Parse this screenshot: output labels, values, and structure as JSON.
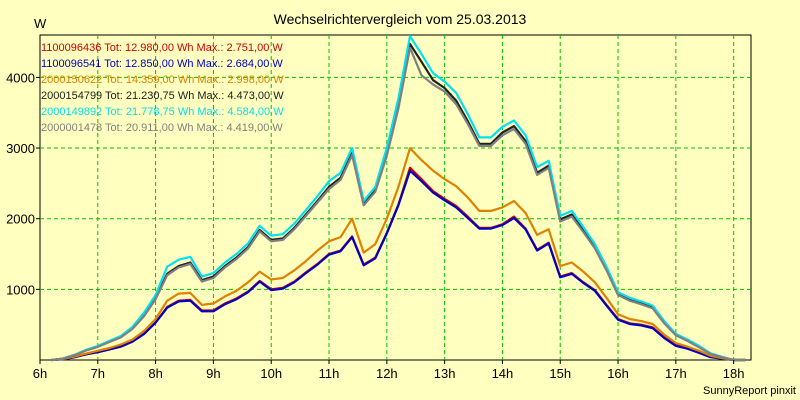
{
  "chart_data": {
    "type": "line",
    "title": "Wechselrichtervergleich vom 25.03.2013",
    "ylabel": "W",
    "footer": "SunnyReport pinxit",
    "x_ticks": [
      "6h",
      "7h",
      "8h",
      "9h",
      "10h",
      "11h",
      "12h",
      "13h",
      "14h",
      "15h",
      "16h",
      "17h",
      "18h"
    ],
    "y_ticks": [
      "1000",
      "2000",
      "3000",
      "4000"
    ],
    "xlim": [
      6,
      18.3
    ],
    "ylim": [
      0,
      4600
    ],
    "grid": true,
    "legend_position": "top-left",
    "x": [
      6.2,
      6.4,
      6.6,
      6.8,
      7.0,
      7.2,
      7.4,
      7.6,
      7.8,
      8.0,
      8.2,
      8.4,
      8.6,
      8.8,
      9.0,
      9.2,
      9.4,
      9.6,
      9.8,
      10.0,
      10.2,
      10.4,
      10.6,
      10.8,
      11.0,
      11.2,
      11.4,
      11.6,
      11.8,
      12.0,
      12.2,
      12.4,
      12.6,
      12.8,
      13.0,
      13.2,
      13.4,
      13.6,
      13.8,
      14.0,
      14.2,
      14.4,
      14.6,
      14.8,
      15.0,
      15.2,
      15.4,
      15.6,
      15.8,
      16.0,
      16.2,
      16.4,
      16.6,
      16.8,
      17.0,
      17.2,
      17.4,
      17.6,
      17.8,
      18.0,
      18.2
    ],
    "series": [
      {
        "name": "1100096436",
        "label": "1100096436 Tot: 12.980,00 Wh Max.: 2.751,00 W",
        "color": "#d00000",
        "values": [
          0,
          10,
          40,
          80,
          110,
          150,
          190,
          260,
          370,
          530,
          750,
          840,
          850,
          700,
          700,
          800,
          870,
          970,
          1120,
          1000,
          1020,
          1110,
          1240,
          1360,
          1500,
          1550,
          1750,
          1350,
          1450,
          1800,
          2200,
          2720,
          2560,
          2390,
          2280,
          2180,
          2030,
          1870,
          1870,
          1920,
          2030,
          1860,
          1560,
          1660,
          1180,
          1230,
          1100,
          990,
          780,
          580,
          520,
          500,
          460,
          320,
          210,
          170,
          110,
          50,
          20,
          0,
          0
        ]
      },
      {
        "name": "1100096541",
        "label": "1100096541 Tot: 12.850,00 Wh Max.: 2.684,00 W",
        "color": "#0000c0",
        "values": [
          0,
          10,
          40,
          80,
          110,
          150,
          190,
          260,
          370,
          530,
          740,
          830,
          840,
          690,
          690,
          790,
          860,
          960,
          1110,
          990,
          1010,
          1100,
          1230,
          1350,
          1490,
          1540,
          1740,
          1340,
          1440,
          1790,
          2190,
          2680,
          2530,
          2370,
          2260,
          2160,
          2010,
          1860,
          1860,
          1910,
          2010,
          1850,
          1550,
          1650,
          1170,
          1220,
          1090,
          980,
          770,
          570,
          510,
          490,
          450,
          310,
          200,
          160,
          100,
          40,
          20,
          0,
          0
        ]
      },
      {
        "name": "2000150622",
        "label": "2000150622 Tot: 14.359,00 Wh Max.: 2.998,00 W",
        "color": "#e08000",
        "values": [
          0,
          15,
          50,
          90,
          130,
          170,
          220,
          290,
          410,
          580,
          840,
          940,
          950,
          780,
          800,
          900,
          980,
          1100,
          1250,
          1140,
          1160,
          1270,
          1400,
          1550,
          1680,
          1740,
          2000,
          1520,
          1640,
          2000,
          2450,
          2998,
          2830,
          2680,
          2560,
          2460,
          2300,
          2110,
          2110,
          2160,
          2250,
          2080,
          1770,
          1850,
          1330,
          1380,
          1250,
          1100,
          880,
          650,
          580,
          550,
          510,
          360,
          240,
          190,
          130,
          60,
          25,
          0,
          0
        ]
      },
      {
        "name": "2000154799",
        "label": "2000154799 Tot: 21.230,75 Wh Max.: 4.473,00 W",
        "color": "#202020",
        "values": [
          0,
          20,
          70,
          140,
          190,
          260,
          330,
          450,
          640,
          880,
          1220,
          1330,
          1380,
          1130,
          1180,
          1330,
          1450,
          1600,
          1840,
          1700,
          1720,
          1870,
          2060,
          2250,
          2450,
          2580,
          2930,
          2210,
          2400,
          2920,
          3600,
          4473,
          4220,
          3960,
          3850,
          3670,
          3380,
          3060,
          3060,
          3220,
          3310,
          3100,
          2650,
          2750,
          1990,
          2060,
          1830,
          1600,
          1290,
          940,
          860,
          810,
          750,
          540,
          360,
          280,
          190,
          90,
          40,
          0,
          0
        ]
      },
      {
        "name": "2000149892",
        "label": "2000149892 Tot: 21.778,75 Wh Max.: 4.584,00 W",
        "color": "#00e0f0",
        "values": [
          0,
          20,
          75,
          145,
          200,
          270,
          340,
          470,
          670,
          920,
          1320,
          1420,
          1460,
          1180,
          1230,
          1380,
          1500,
          1650,
          1900,
          1760,
          1780,
          1930,
          2120,
          2320,
          2530,
          2650,
          3000,
          2250,
          2450,
          3000,
          3700,
          4584,
          4330,
          4060,
          3940,
          3780,
          3480,
          3150,
          3150,
          3300,
          3390,
          3180,
          2730,
          2820,
          2040,
          2110,
          1880,
          1640,
          1320,
          960,
          880,
          830,
          770,
          550,
          370,
          290,
          200,
          95,
          45,
          0,
          0
        ]
      },
      {
        "name": "2000001478",
        "label": "2000001478 Tot: 20.911,00 Wh Max.: 4.419,00 W",
        "color": "#808080",
        "values": [
          0,
          20,
          70,
          135,
          185,
          255,
          320,
          440,
          620,
          860,
          1200,
          1310,
          1360,
          1110,
          1160,
          1310,
          1430,
          1580,
          1820,
          1680,
          1700,
          1850,
          2040,
          2230,
          2420,
          2550,
          2900,
          2190,
          2380,
          2890,
          3560,
          4419,
          4030,
          3900,
          3800,
          3620,
          3340,
          3030,
          3030,
          3180,
          3270,
          3060,
          2620,
          2720,
          1960,
          2030,
          1810,
          1580,
          1270,
          920,
          840,
          790,
          730,
          520,
          350,
          270,
          180,
          85,
          40,
          0,
          0
        ]
      }
    ]
  }
}
